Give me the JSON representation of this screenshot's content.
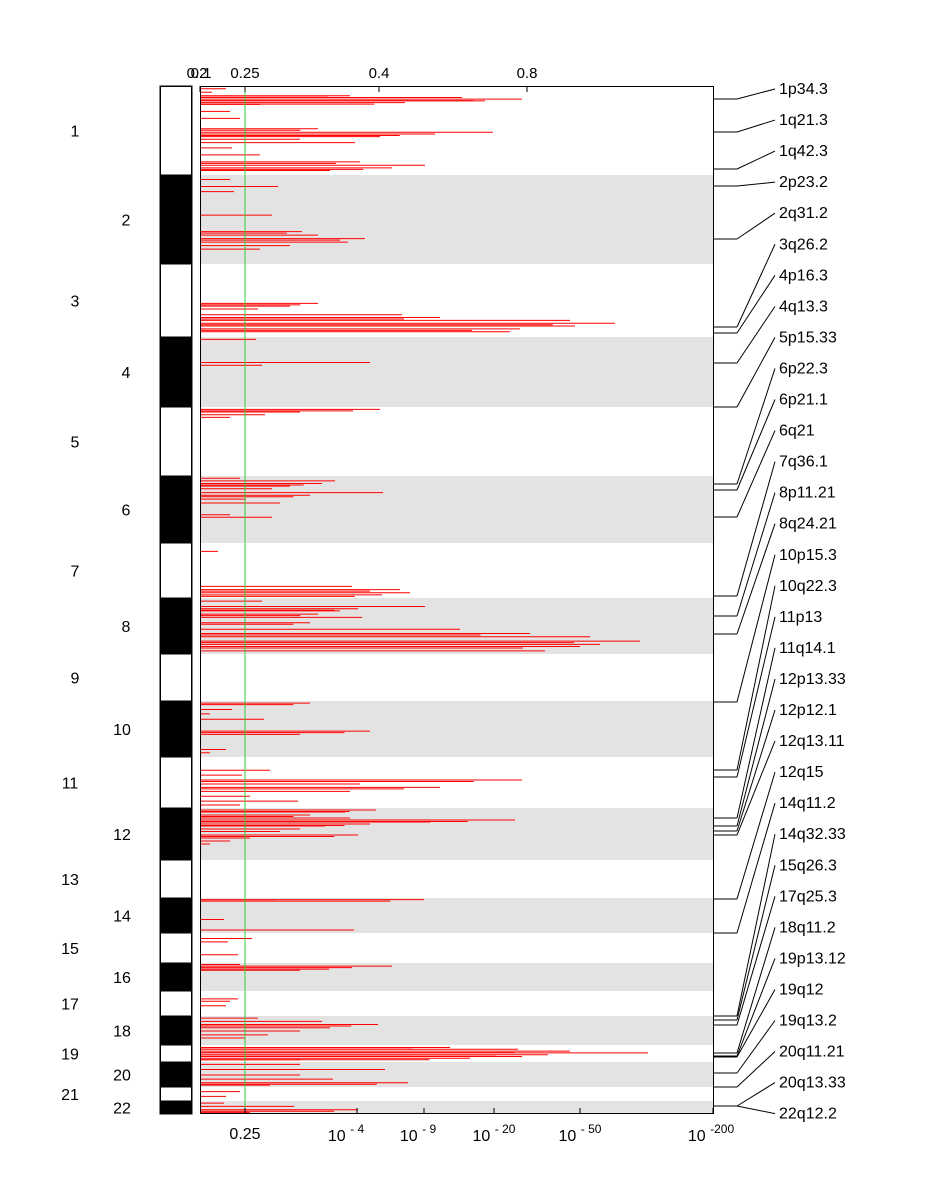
{
  "chart_data": {
    "type": "gistic-amplification-plot",
    "threshold": 0.25,
    "threshold_color": "#33cc33",
    "bar_color": "#ff0000",
    "band_color": "#e3e3e3",
    "chromosomes": [
      "1",
      "2",
      "3",
      "4",
      "5",
      "6",
      "7",
      "8",
      "9",
      "10",
      "11",
      "12",
      "13",
      "14",
      "15",
      "16",
      "17",
      "18",
      "19",
      "20",
      "21",
      "22"
    ],
    "top_axis": {
      "ticks": [
        "0.2",
        "0.1",
        "0.25",
        "0.4",
        "0.8"
      ]
    },
    "bottom_axis": {
      "ticks": [
        {
          "base": "0.25",
          "exp": ""
        },
        {
          "base": "10",
          "exp": "- 4"
        },
        {
          "base": "10",
          "exp": "- 9"
        },
        {
          "base": "10",
          "exp": "- 20"
        },
        {
          "base": "10",
          "exp": "- 50"
        },
        {
          "base": "10",
          "exp": "-200"
        }
      ]
    },
    "peak_labels": [
      "1p34.3",
      "1q21.3",
      "1q42.3",
      "2p23.2",
      "2q31.2",
      "3q26.2",
      "4p16.3",
      "4q13.3",
      "5p15.33",
      "6p22.3",
      "6p21.1",
      "6q21",
      "7q36.1",
      "8p11.21",
      "8q24.21",
      "10p15.3",
      "10q22.3",
      "11p13",
      "11q14.1",
      "12p13.33",
      "12p12.1",
      "12q13.11",
      "12q15",
      "14q11.2",
      "14q32.33",
      "15q26.3",
      "17q25.3",
      "18q11.2",
      "19p13.12",
      "19q12",
      "19q13.2",
      "20q11.21",
      "20q13.33",
      "22q12.2"
    ]
  }
}
